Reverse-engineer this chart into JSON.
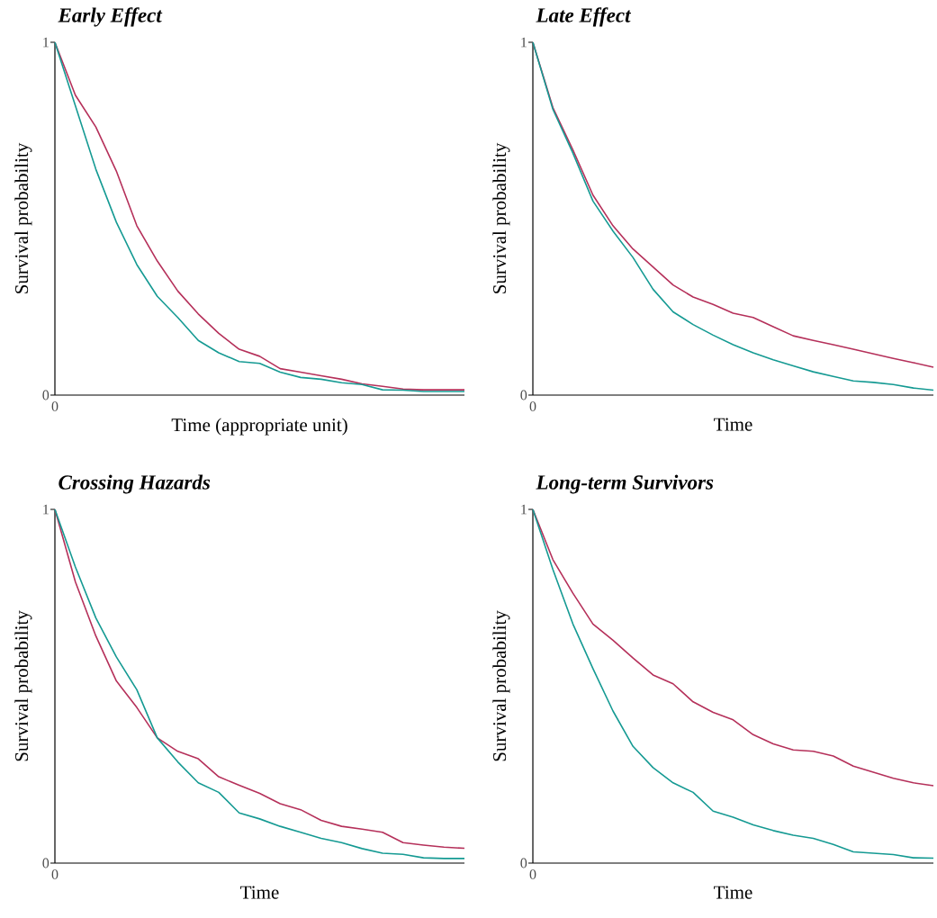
{
  "chart_data": [
    {
      "type": "line",
      "title": "Early Effect",
      "xlabel": "Time (appropriate unit)",
      "ylabel": "Survival probability",
      "categories": [
        null,
        null,
        null,
        null,
        null,
        null,
        null,
        null,
        null,
        null,
        null,
        null,
        null,
        null,
        null,
        null,
        null,
        null,
        null,
        null,
        null
      ],
      "annotations": [
        "0"
      ],
      "ylim": [
        0,
        1
      ],
      "yticks": [
        0,
        1
      ],
      "series": [
        {
          "color": "#b5305a",
          "values": [
            1,
            0.85,
            0.76,
            0.635,
            0.48,
            0.38,
            0.295,
            0.23,
            0.175,
            0.13,
            0.11,
            0.075,
            0.065,
            0.055,
            0.045,
            0.032,
            0.025,
            0.017,
            0.015,
            0.015,
            0.015
          ]
        },
        {
          "color": "#159a93",
          "values": [
            1,
            0.82,
            0.64,
            0.49,
            0.37,
            0.28,
            0.22,
            0.155,
            0.12,
            0.095,
            0.09,
            0.065,
            0.05,
            0.045,
            0.035,
            0.03,
            0.015,
            0.014,
            0.01,
            0.01,
            0.01
          ]
        }
      ]
    },
    {
      "type": "line",
      "title": "Late Effect",
      "xlabel": "Time",
      "ylabel": "Survival probability",
      "categories": [
        null,
        null,
        null,
        null,
        null,
        null,
        null,
        null,
        null,
        null,
        null,
        null,
        null,
        null,
        null,
        null,
        null,
        null,
        null,
        null,
        null
      ],
      "annotations": [
        "0"
      ],
      "ylim": [
        0,
        1
      ],
      "yticks": [
        0,
        1
      ],
      "series": [
        {
          "color": "#b5305a",
          "values": [
            1,
            0.815,
            0.695,
            0.567,
            0.48,
            0.414,
            0.363,
            0.312,
            0.278,
            0.257,
            0.232,
            0.22,
            0.194,
            0.168,
            0.155,
            0.143,
            0.13,
            0.117,
            0.104,
            0.092,
            0.079
          ]
        },
        {
          "color": "#159a93",
          "values": [
            1,
            0.81,
            0.686,
            0.55,
            0.465,
            0.39,
            0.3,
            0.236,
            0.2,
            0.17,
            0.143,
            0.12,
            0.1,
            0.083,
            0.066,
            0.053,
            0.04,
            0.036,
            0.03,
            0.02,
            0.014
          ]
        }
      ]
    },
    {
      "type": "line",
      "title": "Crossing Hazards",
      "xlabel": "Time",
      "ylabel": "Survival probability",
      "categories": [
        null,
        null,
        null,
        null,
        null,
        null,
        null,
        null,
        null,
        null,
        null,
        null,
        null,
        null,
        null,
        null,
        null,
        null,
        null,
        null,
        null
      ],
      "annotations": [
        "0"
      ],
      "ylim": [
        0,
        1
      ],
      "yticks": [
        0,
        1
      ],
      "series": [
        {
          "color": "#b5305a",
          "values": [
            1,
            0.795,
            0.642,
            0.515,
            0.44,
            0.354,
            0.316,
            0.295,
            0.244,
            0.22,
            0.197,
            0.168,
            0.151,
            0.121,
            0.104,
            0.096,
            0.087,
            0.058,
            0.051,
            0.045,
            0.042
          ]
        },
        {
          "color": "#159a93",
          "values": [
            1,
            0.837,
            0.693,
            0.583,
            0.49,
            0.354,
            0.286,
            0.227,
            0.2,
            0.142,
            0.125,
            0.104,
            0.087,
            0.07,
            0.058,
            0.041,
            0.028,
            0.025,
            0.015,
            0.013,
            0.013
          ]
        }
      ]
    },
    {
      "type": "line",
      "title": "Long-term Survivors",
      "xlabel": "Time",
      "ylabel": "Survival probability",
      "categories": [
        null,
        null,
        null,
        null,
        null,
        null,
        null,
        null,
        null,
        null,
        null,
        null,
        null,
        null,
        null,
        null,
        null,
        null,
        null,
        null,
        null
      ],
      "annotations": [
        "0"
      ],
      "ylim": [
        0,
        1
      ],
      "yticks": [
        0,
        1
      ],
      "series": [
        {
          "color": "#b5305a",
          "values": [
            1,
            0.858,
            0.763,
            0.676,
            0.63,
            0.58,
            0.532,
            0.507,
            0.456,
            0.426,
            0.405,
            0.363,
            0.337,
            0.32,
            0.316,
            0.303,
            0.274,
            0.257,
            0.24,
            0.227,
            0.219
          ]
        },
        {
          "color": "#159a93",
          "values": [
            1,
            0.83,
            0.676,
            0.55,
            0.43,
            0.33,
            0.27,
            0.227,
            0.2,
            0.147,
            0.13,
            0.108,
            0.092,
            0.079,
            0.07,
            0.053,
            0.032,
            0.028,
            0.024,
            0.015,
            0.014
          ]
        }
      ]
    }
  ]
}
